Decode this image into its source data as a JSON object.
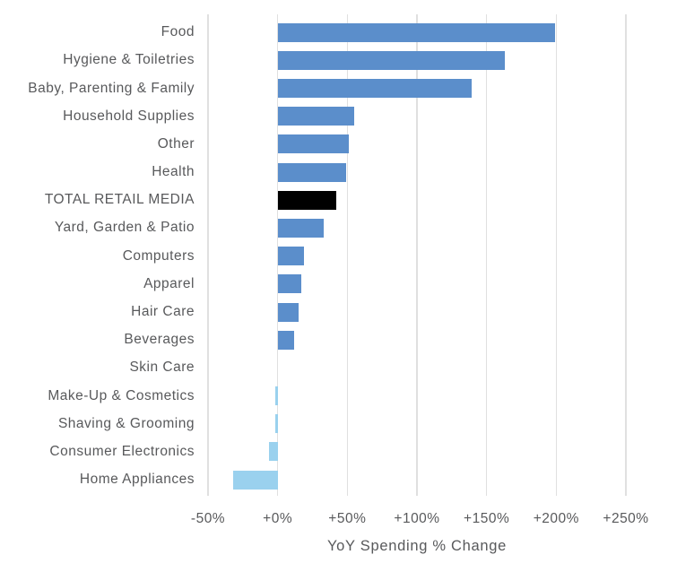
{
  "chart_data": {
    "type": "bar",
    "orientation": "horizontal",
    "title": "",
    "xlabel": "YoY Spending % Change",
    "ylabel": "",
    "xlim": [
      -50,
      250
    ],
    "grid": true,
    "categories": [
      "Food",
      "Hygiene & Toiletries",
      "Baby, Parenting & Family",
      "Household Supplies",
      "Other",
      "Health",
      "TOTAL RETAIL MEDIA",
      "Yard, Garden & Patio",
      "Computers",
      "Apparel",
      "Hair Care",
      "Beverages",
      "Skin Care",
      "Make-Up & Cosmetics",
      "Shaving & Grooming",
      "Consumer Electronics",
      "Home Appliances"
    ],
    "values": [
      199,
      163,
      139,
      55,
      51,
      49,
      42,
      33,
      19,
      17,
      15,
      12,
      0,
      -2,
      -2,
      -6,
      -32
    ],
    "x_ticks": [
      {
        "label": "-50%",
        "value": -50
      },
      {
        "label": "+0%",
        "value": 0
      },
      {
        "label": "+50%",
        "value": 50
      },
      {
        "label": "+100%",
        "value": 100
      },
      {
        "label": "+150%",
        "value": 150
      },
      {
        "label": "+200%",
        "value": 200
      },
      {
        "label": "+250%",
        "value": 250
      }
    ],
    "colors": {
      "positive_bar": "#5b8ecb",
      "negative_bar": "#9ad1ee",
      "highlight_bar": "#000000",
      "gridline": "#e0e0e0",
      "text": "#58595b"
    },
    "highlight_category": "TOTAL RETAIL MEDIA"
  }
}
